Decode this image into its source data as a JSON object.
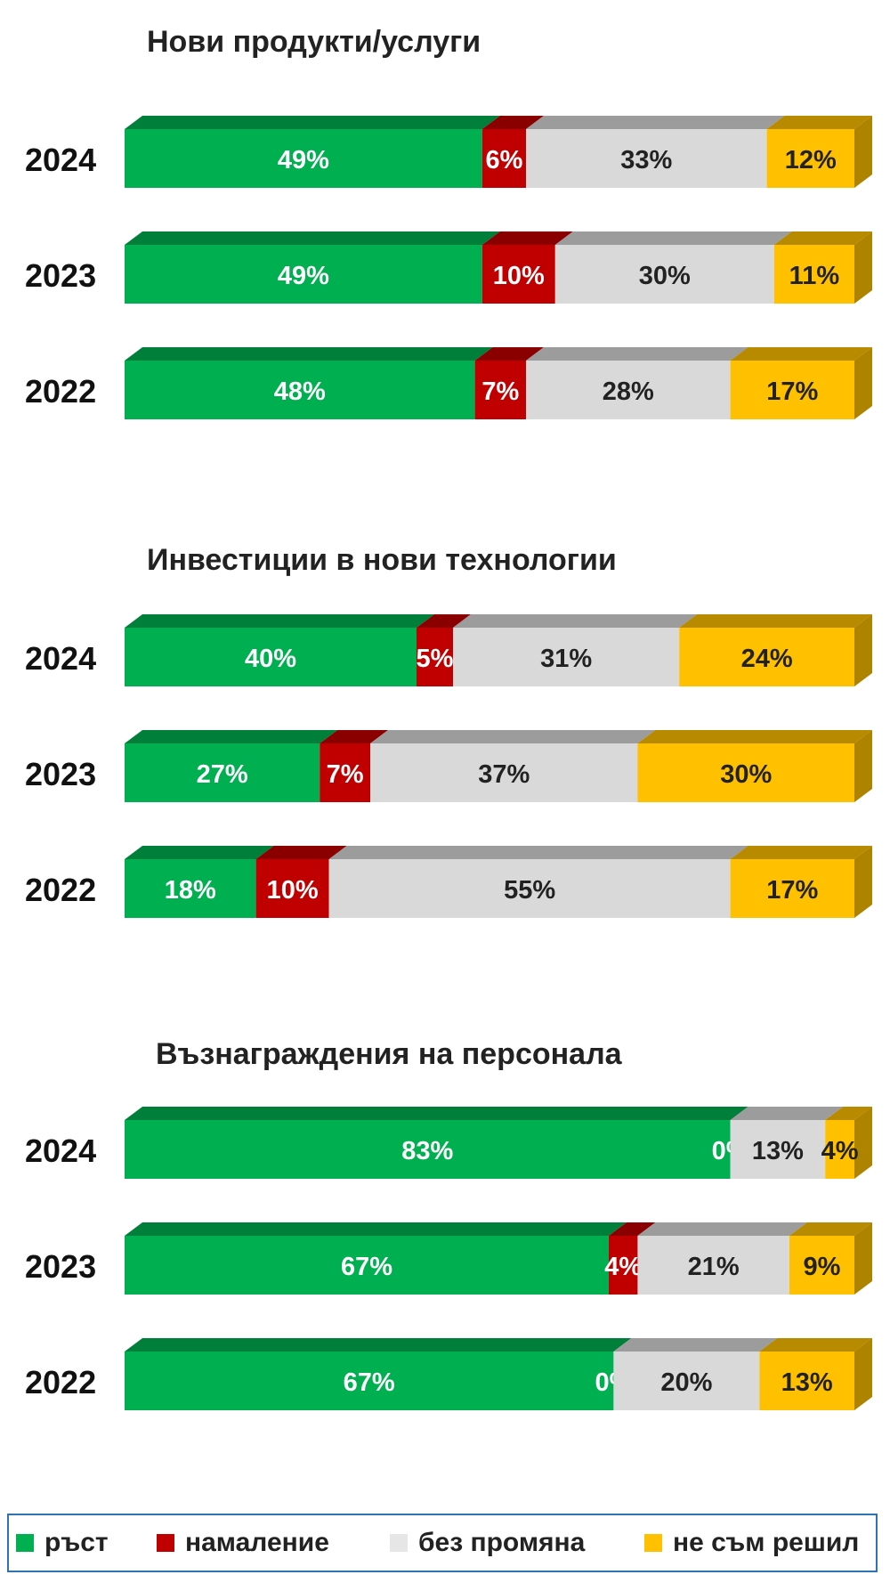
{
  "chart_data": [
    {
      "type": "bar",
      "orientation": "horizontal",
      "stacked": true,
      "percent": true,
      "title": "Нови продукти/услуги",
      "categories": [
        "2024",
        "2023",
        "2022"
      ],
      "series": [
        {
          "name": "ръст",
          "values": [
            49,
            49,
            48
          ]
        },
        {
          "name": "намаление",
          "values": [
            6,
            10,
            7
          ]
        },
        {
          "name": "без промяна",
          "values": [
            33,
            30,
            28
          ]
        },
        {
          "name": "не съм решил",
          "values": [
            12,
            11,
            17
          ]
        }
      ]
    },
    {
      "type": "bar",
      "orientation": "horizontal",
      "stacked": true,
      "percent": true,
      "title": "Инвестиции в нови технологии",
      "categories": [
        "2024",
        "2023",
        "2022"
      ],
      "series": [
        {
          "name": "ръст",
          "values": [
            40,
            27,
            18
          ]
        },
        {
          "name": "намаление",
          "values": [
            5,
            7,
            10
          ]
        },
        {
          "name": "без промяна",
          "values": [
            31,
            37,
            55
          ]
        },
        {
          "name": "не съм решил",
          "values": [
            24,
            30,
            17
          ]
        }
      ]
    },
    {
      "type": "bar",
      "orientation": "horizontal",
      "stacked": true,
      "percent": true,
      "title": "Възнаграждения на персонала",
      "categories": [
        "2024",
        "2023",
        "2022"
      ],
      "series": [
        {
          "name": "ръст",
          "values": [
            83,
            67,
            67
          ]
        },
        {
          "name": "намаление",
          "values": [
            0,
            4,
            0
          ]
        },
        {
          "name": "без промяна",
          "values": [
            13,
            21,
            20
          ]
        },
        {
          "name": "не съм решил",
          "values": [
            4,
            9,
            13
          ]
        }
      ]
    }
  ],
  "colors": {
    "ръст": "#00b050",
    "намаление": "#c00000",
    "без промяна": "#d9d9d9",
    "не съм решил": "#ffc000"
  },
  "label_colors": {
    "ръст": "#ffffff",
    "намаление": "#ffffff",
    "без промяна": "#222222",
    "не съм решил": "#222222"
  },
  "legend": {
    "items": [
      {
        "label": "ръст",
        "color": "#00b050"
      },
      {
        "label": "намаление",
        "color": "#c00000"
      },
      {
        "label": "без промяна",
        "color": "#e6e6e6"
      },
      {
        "label": "не съм решил",
        "color": "#ffc000"
      }
    ]
  }
}
